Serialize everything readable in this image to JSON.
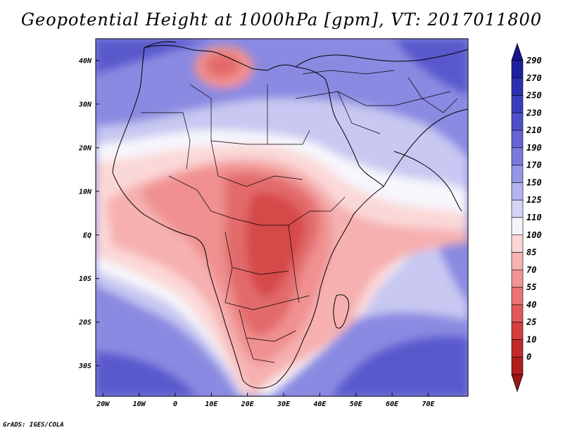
{
  "title": "Geopotential Height at 1000hPa [gpm], VT: 2017011800",
  "credit": "GrADS: IGES/COLA",
  "map": {
    "lon_range": [
      -22,
      81
    ],
    "lat_range": [
      -37,
      45
    ],
    "lat_ticks": [
      {
        "label": "40N",
        "value": 40
      },
      {
        "label": "30N",
        "value": 30
      },
      {
        "label": "20N",
        "value": 20
      },
      {
        "label": "10N",
        "value": 10
      },
      {
        "label": "EQ",
        "value": 0
      },
      {
        "label": "10S",
        "value": -10
      },
      {
        "label": "20S",
        "value": -20
      },
      {
        "label": "30S",
        "value": -30
      }
    ],
    "lon_ticks": [
      {
        "label": "20W",
        "value": -20
      },
      {
        "label": "10W",
        "value": -10
      },
      {
        "label": "0",
        "value": 0
      },
      {
        "label": "10E",
        "value": 10
      },
      {
        "label": "20E",
        "value": 20
      },
      {
        "label": "30E",
        "value": 30
      },
      {
        "label": "40E",
        "value": 40
      },
      {
        "label": "50E",
        "value": 50
      },
      {
        "label": "60E",
        "value": 60
      },
      {
        "label": "70E",
        "value": 70
      }
    ]
  },
  "colorbar": {
    "labels": [
      "290",
      "270",
      "250",
      "230",
      "210",
      "190",
      "170",
      "150",
      "125",
      "110",
      "100",
      "85",
      "70",
      "55",
      "40",
      "25",
      "10",
      "0"
    ],
    "colors": [
      "#2020a0",
      "#2e2eb0",
      "#3c3cbf",
      "#4f4fcc",
      "#6464d6",
      "#7a7ade",
      "#9696e6",
      "#b4b4ef",
      "#d4d4f6",
      "#f4f4fb",
      "#fbd6d6",
      "#f7b4b4",
      "#f29494",
      "#ea7474",
      "#e05858",
      "#d43e3e",
      "#c42a2a",
      "#b01e1e"
    ],
    "top_arrow_color": "#161690",
    "bottom_arrow_color": "#9c1414"
  },
  "field_colors": {
    "ocean_far": "#5858cc",
    "ocean_mid": "#8a8ae2",
    "light_blue": "#c8c8f2",
    "white_band": "#f6f6fc",
    "pale_pink": "#fbd8d8",
    "pink": "#f6b0b0",
    "salmon": "#f09090",
    "red": "#e26a6a",
    "deep_red": "#d64a4a"
  }
}
